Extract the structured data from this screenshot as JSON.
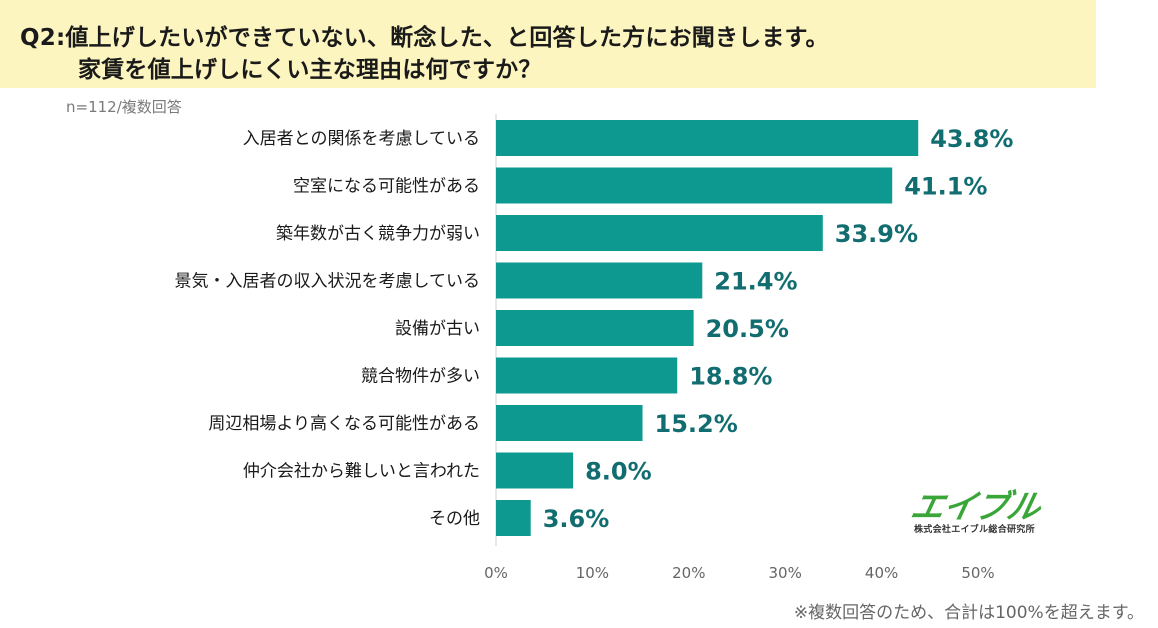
{
  "header": {
    "title_line1": "Q2:値上げしたいができていない、断念した、と回答した方にお聞きします。",
    "title_line2": "家賃を値上げしにくい主な理由は何ですか？",
    "sample_note": "n=112/複数回答"
  },
  "chart_data": {
    "type": "bar",
    "orientation": "horizontal",
    "categories": [
      "入居者との関係を考慮している",
      "空室になる可能性がある",
      "築年数が古く競争力が弱い",
      "景気・入居者の収入状況を考慮している",
      "設備が古い",
      "競合物件が多い",
      "周辺相場より高くなる可能性がある",
      "仲介会社から難しいと言われた",
      "その他"
    ],
    "values": [
      43.8,
      41.1,
      33.9,
      21.4,
      20.5,
      18.8,
      15.2,
      8.0,
      3.6
    ],
    "value_labels": [
      "43.8%",
      "41.1%",
      "33.9%",
      "21.4%",
      "20.5%",
      "18.8%",
      "15.2%",
      "8.0%",
      "3.6%"
    ],
    "xlim": [
      0,
      50
    ],
    "xticks": [
      0,
      10,
      20,
      30,
      40,
      50
    ],
    "xtick_labels": [
      "0%",
      "10%",
      "20%",
      "30%",
      "40%",
      "50%"
    ],
    "grid": false,
    "legend": "none",
    "bar_color": "#0e9990",
    "label_color": "#126d70"
  },
  "logo": {
    "name": "エイブル",
    "company": "株式会社エイブル総合研究所",
    "color": "#3aa63a"
  },
  "footnote": "※複数回答のため、合計は100%を超えます。"
}
